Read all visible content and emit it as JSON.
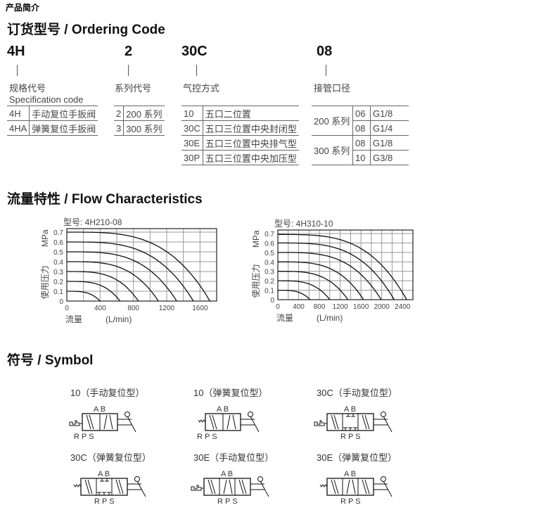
{
  "header": "产品简介",
  "ordering": {
    "title": "订货型号 / Ordering Code",
    "codes": [
      "4H",
      "2",
      "30C",
      "08"
    ],
    "spec": {
      "label": "规格代号",
      "label_en": "Specification code",
      "rows": [
        [
          "4H",
          "手动复位手扳阀"
        ],
        [
          "4HA",
          "弹簧复位手扳阀"
        ]
      ]
    },
    "series": {
      "label": "系列代号",
      "rows": [
        [
          "2",
          "200 系列"
        ],
        [
          "3",
          "300 系列"
        ]
      ]
    },
    "control": {
      "label": "气控方式",
      "rows": [
        [
          "10",
          "五口二位置"
        ],
        [
          "30C",
          "五口三位置中央封闭型"
        ],
        [
          "30E",
          "五口三位置中央排气型"
        ],
        [
          "30P",
          "五口三位置中央加压型"
        ]
      ]
    },
    "port": {
      "label": "接管口径",
      "groups": [
        {
          "series": "200 系列",
          "rows": [
            [
              "06",
              "G1/8"
            ],
            [
              "08",
              "G1/4"
            ]
          ]
        },
        {
          "series": "300 系列",
          "rows": [
            [
              "08",
              "G1/8"
            ],
            [
              "10",
              "G3/8"
            ]
          ]
        }
      ]
    }
  },
  "flow": {
    "title": "流量特性 / Flow Characteristics"
  },
  "chart_data": [
    {
      "type": "line",
      "title": "型号: 4H210-08",
      "ylabel_unit": "MPa",
      "ylabel": "使用压力",
      "xlabel": "流量",
      "xunit": "(L/min)",
      "xlim": [
        0,
        1800
      ],
      "ylim": [
        0,
        0.7
      ],
      "xticks": [
        "0",
        "400",
        "800",
        "1200",
        "1600"
      ],
      "yticks": [
        "0",
        "0.1",
        "0.2",
        "0.3",
        "0.4",
        "0.5",
        "0.6",
        "0.7"
      ],
      "grid": true,
      "series": [
        {
          "start_pressure": 0.1,
          "max_flow": 400
        },
        {
          "start_pressure": 0.2,
          "max_flow": 640
        },
        {
          "start_pressure": 0.3,
          "max_flow": 860
        },
        {
          "start_pressure": 0.4,
          "max_flow": 1100
        },
        {
          "start_pressure": 0.5,
          "max_flow": 1320
        },
        {
          "start_pressure": 0.6,
          "max_flow": 1520
        },
        {
          "start_pressure": 0.7,
          "max_flow": 1720
        }
      ]
    },
    {
      "type": "line",
      "title": "型号: 4H310-10",
      "ylabel_unit": "MPa",
      "ylabel": "使用压力",
      "xlabel": "流量",
      "xunit": "(L/min)",
      "xlim": [
        0,
        2600
      ],
      "ylim": [
        0,
        0.7
      ],
      "xticks": [
        "0",
        "400",
        "800",
        "1200",
        "1600",
        "2000",
        "2400"
      ],
      "yticks": [
        "0",
        "0.1",
        "0.2",
        "0.3",
        "0.4",
        "0.5",
        "0.6",
        "0.7"
      ],
      "grid": true,
      "series": [
        {
          "start_pressure": 0.1,
          "max_flow": 620
        },
        {
          "start_pressure": 0.2,
          "max_flow": 1000
        },
        {
          "start_pressure": 0.3,
          "max_flow": 1350
        },
        {
          "start_pressure": 0.4,
          "max_flow": 1650
        },
        {
          "start_pressure": 0.5,
          "max_flow": 1990
        },
        {
          "start_pressure": 0.6,
          "max_flow": 2240
        },
        {
          "start_pressure": 0.69,
          "max_flow": 2480
        }
      ]
    }
  ],
  "symbol": {
    "title": "符号 / Symbol",
    "ports_top": "A B",
    "ports_bottom": "R P S",
    "items": [
      {
        "title": "10（手动复位型）",
        "positions": 2,
        "reset": "manual"
      },
      {
        "title": "10（弹簧复位型）",
        "positions": 2,
        "reset": "spring"
      },
      {
        "title": "30C（手动复位型）",
        "positions": 3,
        "center": "closed",
        "reset": "manual"
      },
      {
        "title": "30C（弹簧复位型）",
        "positions": 3,
        "center": "closed",
        "reset": "spring"
      },
      {
        "title": "30E（手动复位型）",
        "positions": 3,
        "center": "exhaust",
        "reset": "manual"
      },
      {
        "title": "30E（弹簧复位型）",
        "positions": 3,
        "center": "exhaust",
        "reset": "spring"
      }
    ]
  }
}
